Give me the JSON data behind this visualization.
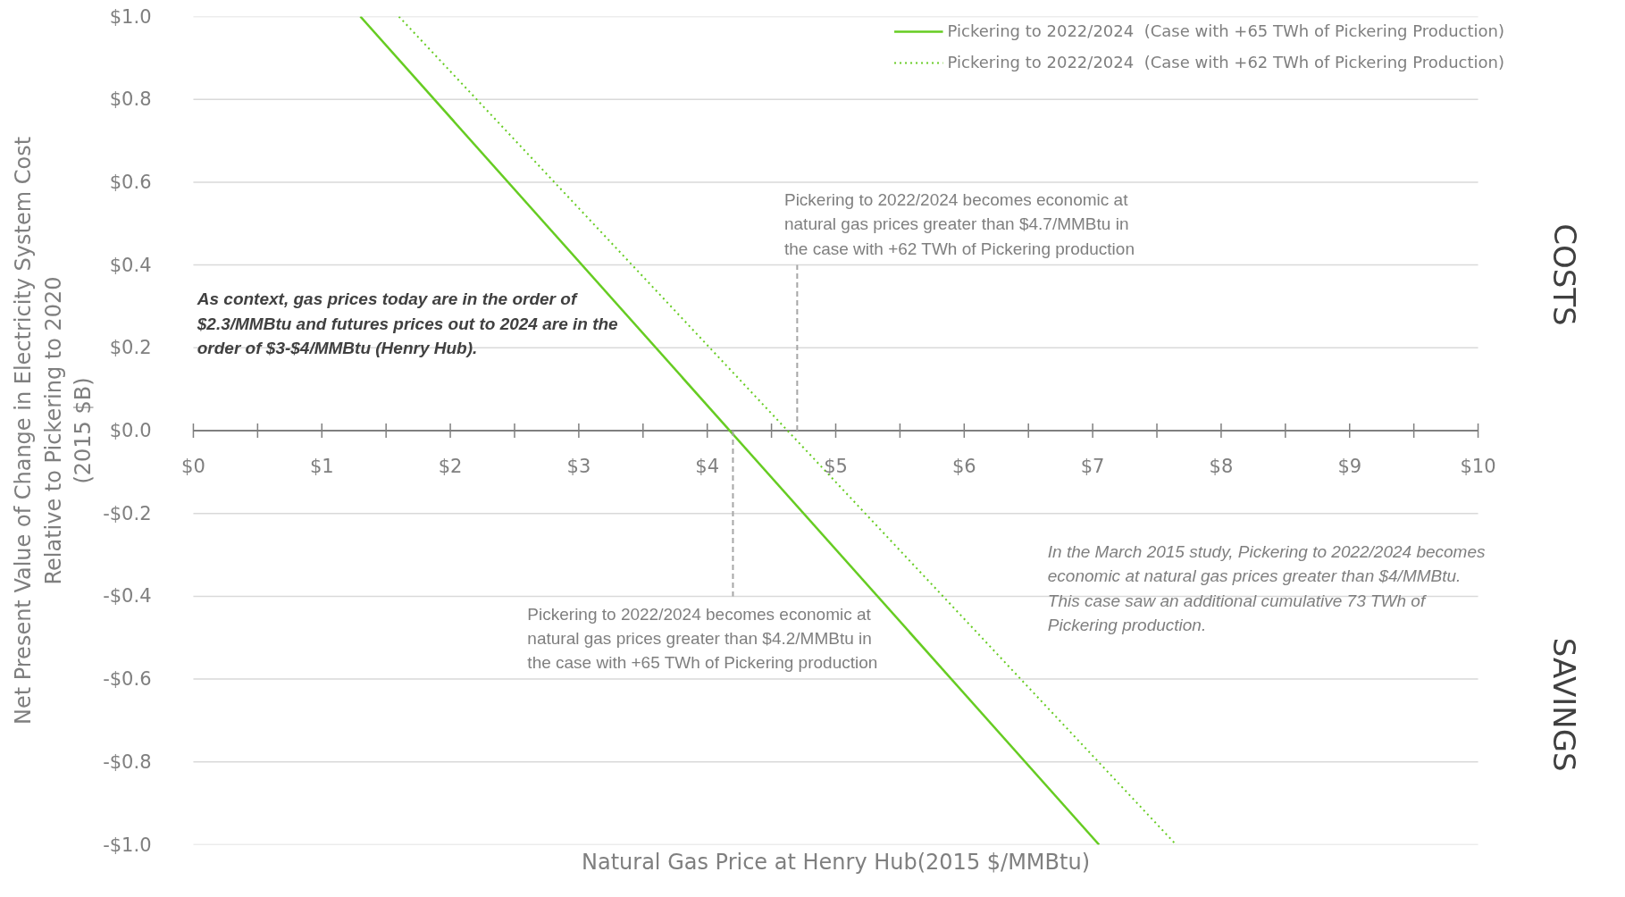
{
  "chart_data": {
    "type": "line",
    "xlabel": "Natural Gas Price at Henry Hub(2015 $/MMBtu)",
    "ylabel": "Net Present Value of Change in Electricity System Cost\nRelative to Pickering to 2020\n(2015 $B)",
    "series": [
      {
        "name": "Pickering to 2022/2024  (Case with +65 TWh of Pickering Production)",
        "color": "#66cc22",
        "line_style": "solid",
        "x": [
          1.3,
          7.05
        ],
        "values": [
          1.0,
          -1.0
        ]
      },
      {
        "name": "Pickering to 2022/2024  (Case with +62 TWh of Pickering Production)",
        "color": "#66cc22",
        "line_style": "dotted",
        "x": [
          1.6,
          7.65
        ],
        "values": [
          1.0,
          -1.0
        ]
      },
      {
        "color": "#a6a6a6",
        "line_style": "dashed",
        "x": [
          4.7,
          4.7
        ],
        "values": [
          0.0,
          0.4
        ]
      },
      {
        "color": "#a6a6a6",
        "line_style": "dashed",
        "x": [
          4.2,
          4.2
        ],
        "values": [
          0.0,
          -0.4
        ]
      }
    ],
    "xlim": [
      0,
      10
    ],
    "xticks": [
      {
        "value": 0,
        "label": "$0"
      },
      {
        "value": 0.5,
        "label": null
      },
      {
        "value": 1,
        "label": "$1"
      },
      {
        "value": 1.5,
        "label": null
      },
      {
        "value": 2,
        "label": "$2"
      },
      {
        "value": 2.5,
        "label": null
      },
      {
        "value": 3,
        "label": "$3"
      },
      {
        "value": 3.5,
        "label": null
      },
      {
        "value": 4,
        "label": "$4"
      },
      {
        "value": 4.5,
        "label": null
      },
      {
        "value": 5,
        "label": "$5"
      },
      {
        "value": 5.5,
        "label": null
      },
      {
        "value": 6,
        "label": "$6"
      },
      {
        "value": 6.5,
        "label": null
      },
      {
        "value": 7,
        "label": "$7"
      },
      {
        "value": 7.5,
        "label": null
      },
      {
        "value": 8,
        "label": "$8"
      },
      {
        "value": 8.5,
        "label": null
      },
      {
        "value": 9,
        "label": "$9"
      },
      {
        "value": 9.5,
        "label": null
      },
      {
        "value": 10,
        "label": "$10"
      }
    ],
    "ylim": [
      -1.0,
      1.0
    ],
    "yticks": [
      {
        "value": -1.0,
        "label": "-$1.0"
      },
      {
        "value": -0.8,
        "label": "-$0.8"
      },
      {
        "value": -0.6,
        "label": "-$0.6"
      },
      {
        "value": -0.4,
        "label": "-$0.4"
      },
      {
        "value": -0.2,
        "label": "-$0.2"
      },
      {
        "value": 0.0,
        "label": "$0.0"
      },
      {
        "value": 0.2,
        "label": "$0.2"
      },
      {
        "value": 0.4,
        "label": "$0.4"
      },
      {
        "value": 0.6,
        "label": "$0.6"
      },
      {
        "value": 0.8,
        "label": "$0.8"
      },
      {
        "value": 1.0,
        "label": "$1.0"
      }
    ],
    "grid": "y",
    "legend": "top right",
    "annotations": [
      "Pickering to 2022/2024 becomes economic at natural gas prices greater than $4.7/MMBtu in the case with +62 TWh of Pickering production",
      "Pickering to 2022/2024 becomes economic at natural gas prices greater than $4.2/MMBtu in the case with +65 TWh of Pickering production",
      "As context, gas prices today are in the order of $2.3/MMBtu and futures prices out to 2024 are in the order of $3-$4/MMBtu (Henry Hub).",
      "In the March 2015 study, Pickering to 2022/2024 becomes economic at natural gas prices greater than $4/MMBtu. This case saw an additional cumulative 73 TWh of Pickering production.",
      "COSTS",
      "SAVINGS"
    ]
  }
}
